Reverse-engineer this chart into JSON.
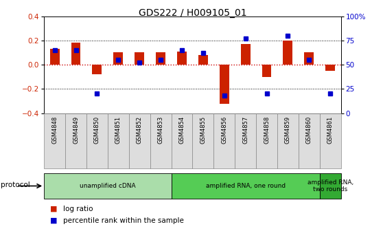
{
  "title": "GDS222 / H009105_01",
  "samples": [
    "GSM4848",
    "GSM4849",
    "GSM4850",
    "GSM4851",
    "GSM4852",
    "GSM4853",
    "GSM4854",
    "GSM4855",
    "GSM4856",
    "GSM4857",
    "GSM4858",
    "GSM4859",
    "GSM4860",
    "GSM4861"
  ],
  "log_ratio": [
    0.13,
    0.18,
    -0.08,
    0.1,
    0.1,
    0.1,
    0.11,
    0.08,
    -0.32,
    0.17,
    -0.1,
    0.2,
    0.1,
    -0.05
  ],
  "percentile": [
    65,
    65,
    20,
    55,
    52,
    55,
    65,
    62,
    18,
    77,
    20,
    80,
    55,
    20
  ],
  "ylim_left": [
    -0.4,
    0.4
  ],
  "ylim_right": [
    0,
    100
  ],
  "yticks_left": [
    -0.4,
    -0.2,
    0.0,
    0.2,
    0.4
  ],
  "ytick_labels_right": [
    "0",
    "25",
    "50",
    "75",
    "100%"
  ],
  "bar_color": "#cc2200",
  "dot_color": "#0000cc",
  "zero_line_color": "#cc0000",
  "protocol_groups": [
    {
      "label": "unamplified cDNA",
      "start": 0,
      "end": 6,
      "color": "#aaddaa"
    },
    {
      "label": "amplified RNA, one round",
      "start": 6,
      "end": 13,
      "color": "#55cc55"
    },
    {
      "label": "amplified RNA,\ntwo rounds",
      "start": 13,
      "end": 14,
      "color": "#33aa33"
    }
  ],
  "legend_items": [
    {
      "color": "#cc2200",
      "label": "log ratio"
    },
    {
      "color": "#0000cc",
      "label": "percentile rank within the sample"
    }
  ],
  "bar_width": 0.45,
  "dot_size": 18,
  "tick_label_color_left": "#cc2200",
  "tick_label_color_right": "#0000cc"
}
